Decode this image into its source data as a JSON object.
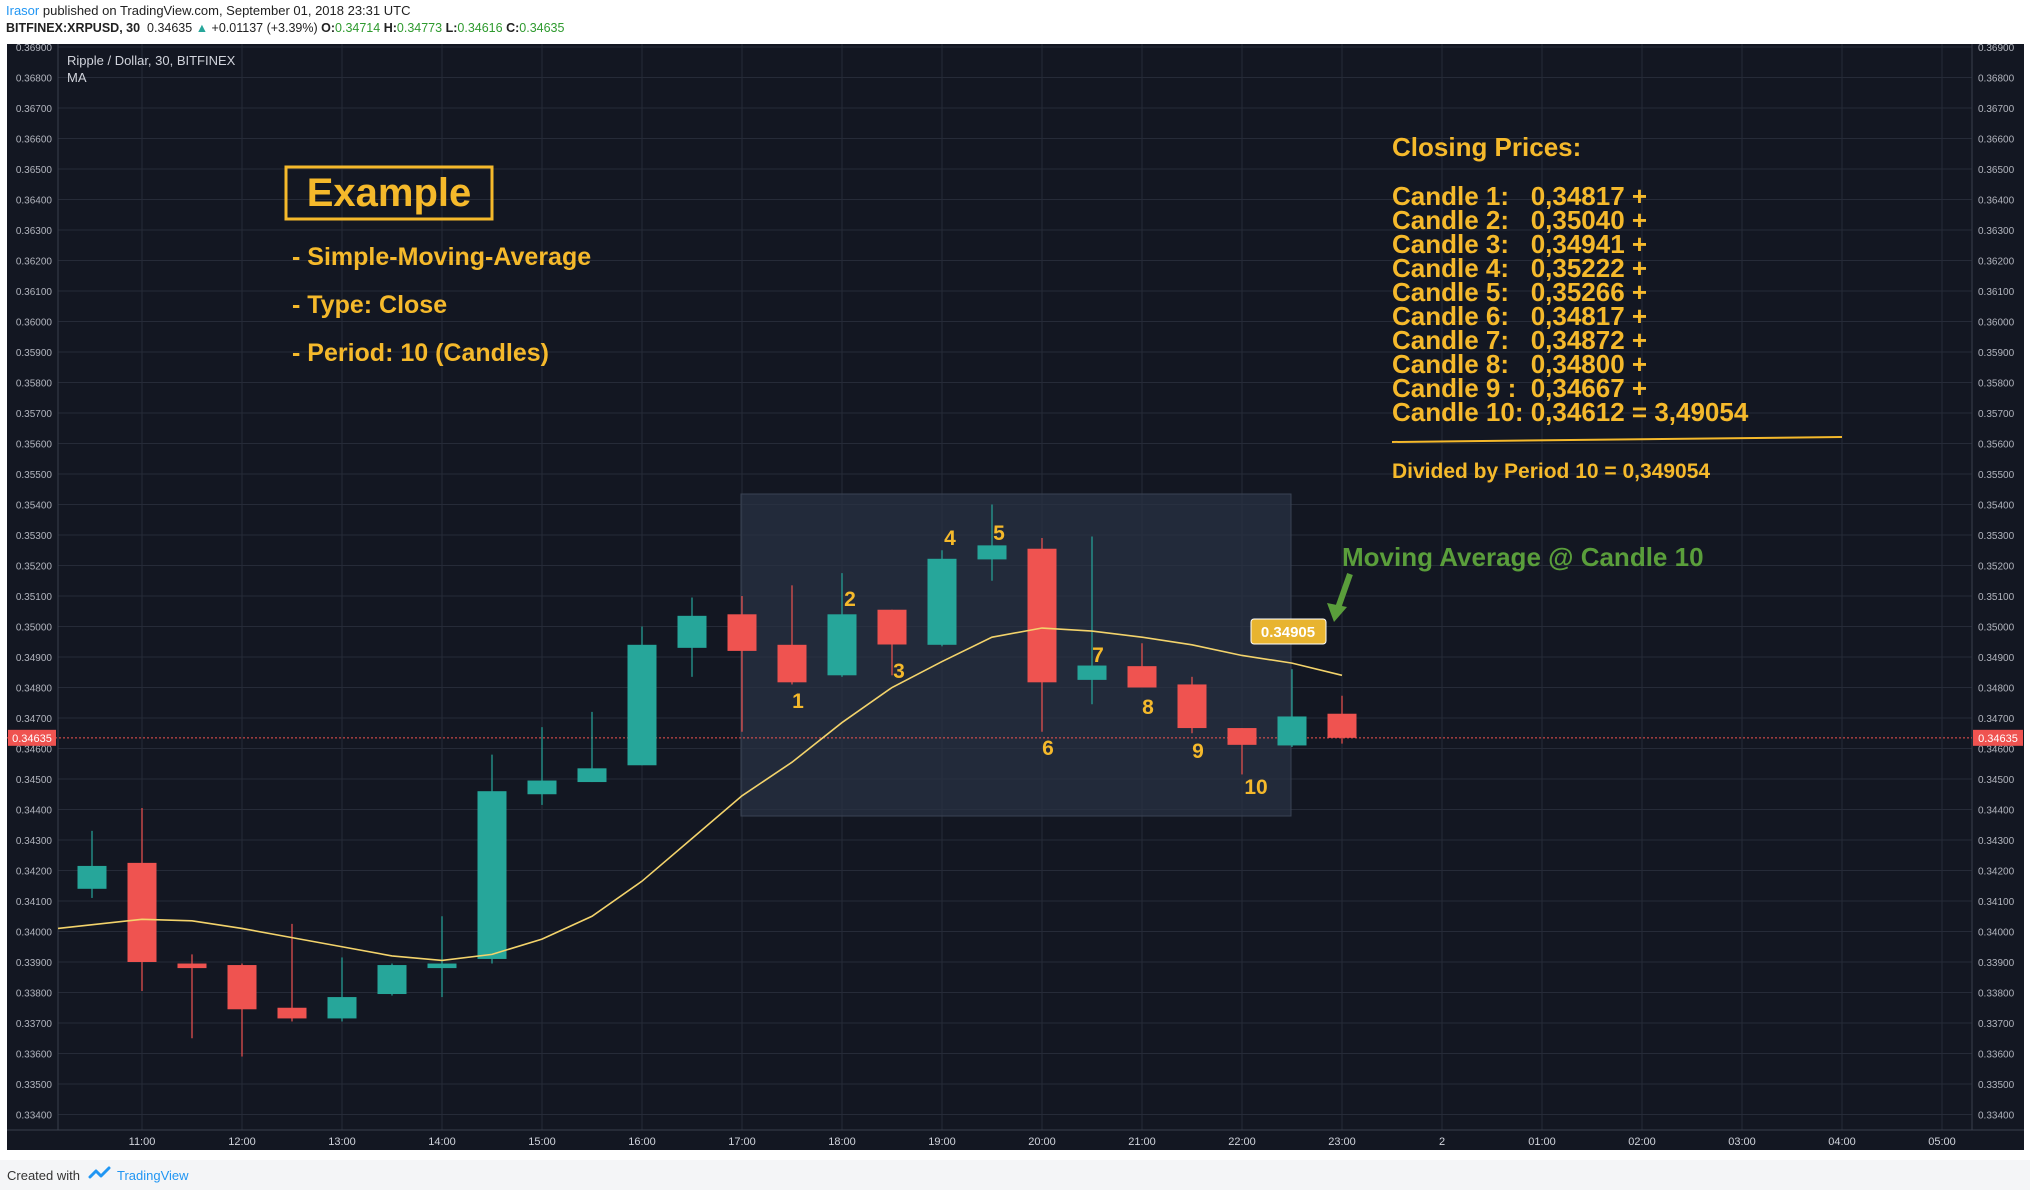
{
  "header": {
    "author": "Irasor",
    "published": "published on TradingView.com, September 01, 2018 23:31 UTC",
    "symbol": "BITFINEX:XRPUSD, 30",
    "last": "0.34635",
    "arrow": "▲",
    "change": "+0.01137 (+3.39%)",
    "o_label": "O:",
    "o_value": "0.34714",
    "h_label": "H:",
    "h_value": "0.34773",
    "l_label": "L:",
    "l_value": "0.34616",
    "c_label": "C:",
    "c_value": "0.34635"
  },
  "legend": {
    "title": "Ripple / Dollar, 30, BITFINEX",
    "indicator": "MA"
  },
  "annotations": {
    "example_title": "Example",
    "lines": [
      "- Simple-Moving-Average",
      "- Type: Close",
      "- Period: 10 (Candles)"
    ],
    "closing_title": "Closing Prices:",
    "closing_lines": [
      "Candle 1:   0,34817 +",
      "Candle 2:   0,35040 +",
      "Candle 3:   0,34941 +",
      "Candle 4:   0,35222 +",
      "Candle 5:   0,35266 +",
      "Candle 6:   0,34817 +",
      "Candle 7:   0,34872 +",
      "Candle 8:   0,34800 +",
      "Candle 9 :  0,34667 +",
      "Candle 10: 0,34612 = 3,49054"
    ],
    "divided": "Divided by Period 10 = 0,349054",
    "ma_callout": "Moving Average @ Candle 10",
    "ma_value_tag": "0.34905",
    "price_tag": "0.34635"
  },
  "footer": {
    "created": "Created with",
    "brand": "TradingView"
  },
  "colors": {
    "background": "#131722",
    "grid": "#262b38",
    "bull": "#26a69a",
    "bear": "#ef5350",
    "ma_line": "#f3d36b",
    "annotation": "#f5b92b",
    "callout_green": "#5a9e3b",
    "price_line": "#ef5350"
  },
  "chart_data": {
    "type": "candlestick",
    "title": "Ripple / Dollar, 30, BITFINEX",
    "indicator": "MA",
    "x_tick_labels": [
      "11:00",
      "12:00",
      "13:00",
      "14:00",
      "15:00",
      "16:00",
      "17:00",
      "18:00",
      "19:00",
      "20:00",
      "21:00",
      "22:00",
      "23:00",
      "2",
      "01:00",
      "02:00",
      "03:00",
      "04:00",
      "05:00"
    ],
    "y_ticks": [
      "0.33400",
      "0.33500",
      "0.33600",
      "0.33700",
      "0.33800",
      "0.33900",
      "0.34000",
      "0.34100",
      "0.34200",
      "0.34300",
      "0.34400",
      "0.34500",
      "0.34600",
      "0.34700",
      "0.34800",
      "0.34900",
      "0.35000",
      "0.35100",
      "0.35200",
      "0.35300",
      "0.35400",
      "0.35500",
      "0.35600",
      "0.35700",
      "0.35800",
      "0.35900",
      "0.36000",
      "0.36100",
      "0.36200",
      "0.36300",
      "0.36400",
      "0.36500",
      "0.36600",
      "0.36700",
      "0.36800",
      "0.36900"
    ],
    "ylim": [
      0.334,
      0.369
    ],
    "candles": [
      {
        "t": "10:30",
        "o": 0.3414,
        "h": 0.3433,
        "l": 0.3411,
        "c": 0.34215
      },
      {
        "t": "11:00",
        "o": 0.34225,
        "h": 0.34405,
        "l": 0.33805,
        "c": 0.339
      },
      {
        "t": "11:30",
        "o": 0.33895,
        "h": 0.33925,
        "l": 0.3365,
        "c": 0.3388
      },
      {
        "t": "12:00",
        "o": 0.3389,
        "h": 0.33895,
        "l": 0.3359,
        "c": 0.33745
      },
      {
        "t": "12:30",
        "o": 0.3375,
        "h": 0.34025,
        "l": 0.33705,
        "c": 0.33715
      },
      {
        "t": "13:00",
        "o": 0.33715,
        "h": 0.33915,
        "l": 0.33705,
        "c": 0.33785
      },
      {
        "t": "13:30",
        "o": 0.33795,
        "h": 0.33895,
        "l": 0.3379,
        "c": 0.3389
      },
      {
        "t": "14:00",
        "o": 0.3388,
        "h": 0.3405,
        "l": 0.33785,
        "c": 0.33895
      },
      {
        "t": "14:30",
        "o": 0.3391,
        "h": 0.3458,
        "l": 0.33895,
        "c": 0.3446
      },
      {
        "t": "15:00",
        "o": 0.3445,
        "h": 0.3467,
        "l": 0.34415,
        "c": 0.34495
      },
      {
        "t": "15:30",
        "o": 0.3449,
        "h": 0.3472,
        "l": 0.3449,
        "c": 0.34535
      },
      {
        "t": "16:00",
        "o": 0.34545,
        "h": 0.35,
        "l": 0.34545,
        "c": 0.3494
      },
      {
        "t": "16:30",
        "o": 0.3493,
        "h": 0.35095,
        "l": 0.34835,
        "c": 0.35035
      },
      {
        "t": "17:00",
        "o": 0.3504,
        "h": 0.351,
        "l": 0.34655,
        "c": 0.3492
      },
      {
        "t": "17:30",
        "o": 0.3494,
        "h": 0.35135,
        "l": 0.3481,
        "c": 0.34817
      },
      {
        "t": "18:00",
        "o": 0.3484,
        "h": 0.35175,
        "l": 0.34835,
        "c": 0.3504
      },
      {
        "t": "18:30",
        "o": 0.35055,
        "h": 0.35055,
        "l": 0.3484,
        "c": 0.34941
      },
      {
        "t": "19:00",
        "o": 0.3494,
        "h": 0.3525,
        "l": 0.34935,
        "c": 0.35222
      },
      {
        "t": "19:30",
        "o": 0.3522,
        "h": 0.354,
        "l": 0.3515,
        "c": 0.35266
      },
      {
        "t": "20:00",
        "o": 0.35255,
        "h": 0.3529,
        "l": 0.34655,
        "c": 0.34817
      },
      {
        "t": "20:30",
        "o": 0.34825,
        "h": 0.35295,
        "l": 0.34745,
        "c": 0.34872
      },
      {
        "t": "21:00",
        "o": 0.3487,
        "h": 0.34945,
        "l": 0.348,
        "c": 0.348
      },
      {
        "t": "21:30",
        "o": 0.3481,
        "h": 0.34835,
        "l": 0.3465,
        "c": 0.34667
      },
      {
        "t": "22:00",
        "o": 0.34667,
        "h": 0.34667,
        "l": 0.34515,
        "c": 0.34612
      },
      {
        "t": "22:30",
        "o": 0.3461,
        "h": 0.3486,
        "l": 0.34605,
        "c": 0.34705
      },
      {
        "t": "23:00",
        "o": 0.34714,
        "h": 0.34773,
        "l": 0.34616,
        "c": 0.34635
      }
    ],
    "moving_average": [
      0.3401,
      0.3404,
      0.34035,
      0.3401,
      0.3398,
      0.3395,
      0.3392,
      0.33905,
      0.33925,
      0.33975,
      0.3405,
      0.34165,
      0.34305,
      0.34445,
      0.34555,
      0.34685,
      0.348,
      0.34885,
      0.34965,
      0.34995,
      0.34985,
      0.34965,
      0.3494,
      0.34905,
      0.3488,
      0.3484
    ]
  }
}
